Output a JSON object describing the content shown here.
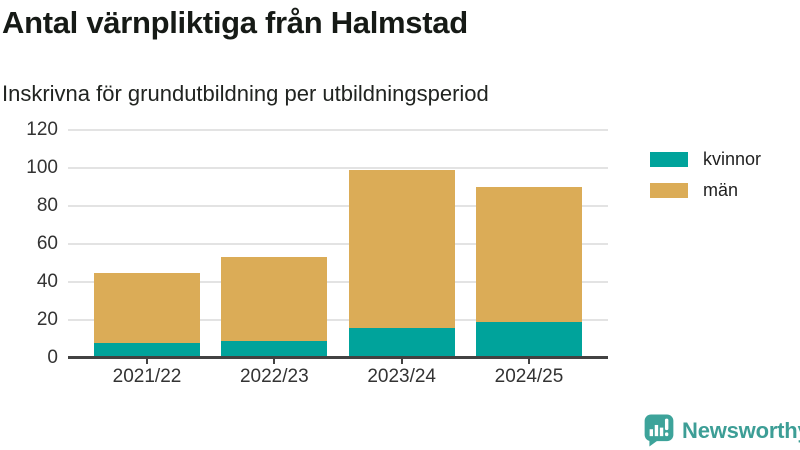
{
  "chart_data": {
    "type": "bar",
    "stacked": true,
    "title": "Antal värnpliktiga från Halmstad",
    "subtitle": "Inskrivna för grundutbildning per utbildningsperiod",
    "categories": [
      "2021/22",
      "2022/23",
      "2023/24",
      "2024/25"
    ],
    "series": [
      {
        "name": "kvinnor",
        "color": "#00a39b",
        "values": [
          8,
          9,
          16,
          19
        ]
      },
      {
        "name": "män",
        "color": "#dbac57",
        "values": [
          37,
          44,
          83,
          71
        ]
      }
    ],
    "stack_totals": [
      45,
      53,
      99,
      90
    ],
    "ylim": [
      0,
      120
    ],
    "yticks": [
      0,
      20,
      40,
      60,
      80,
      100,
      120
    ],
    "grid": "horizontal",
    "legend_position": "right"
  },
  "branding": {
    "logo_text": "Newsworthy",
    "logo_icon": "newsworthy-bar-chart-bubble-icon",
    "color": "#3d9e96"
  }
}
